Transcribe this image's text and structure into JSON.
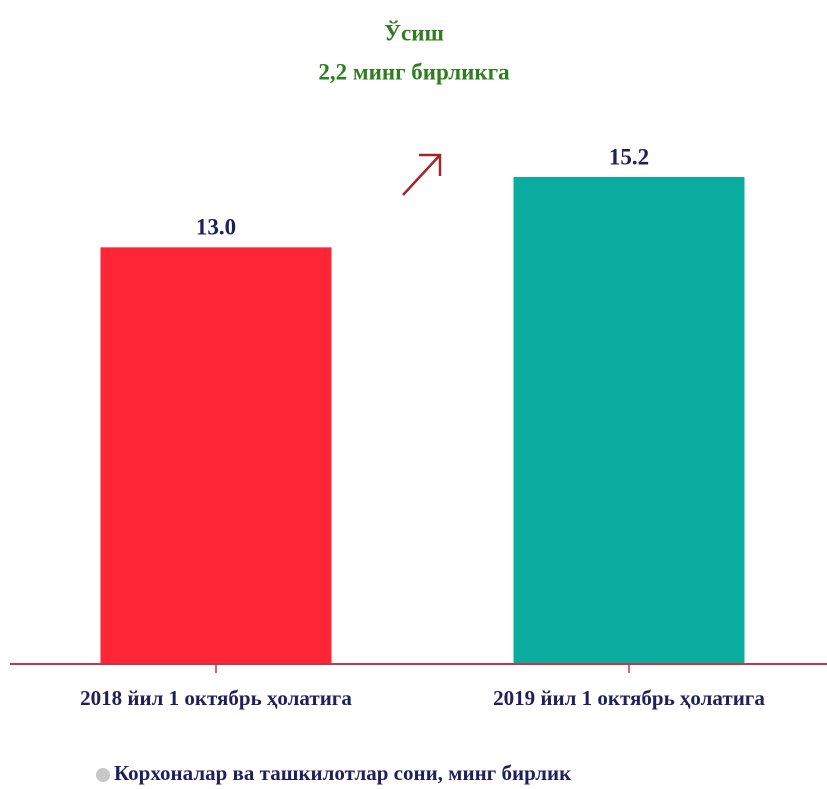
{
  "chart_data": {
    "type": "bar",
    "annotations": [
      "Ўсиш",
      "2,2 минг бирликга"
    ],
    "categories": [
      "2018 йил 1 октябрь ҳолатига",
      "2019 йил 1 октябрь ҳолатига"
    ],
    "series": [
      {
        "name": "Корхоналар ва ташкилотлар сони, минг бирлик",
        "color": "#c8c8c8",
        "bar_colors": [
          "#fe2634",
          "#0aaca0"
        ],
        "values": [
          13.0,
          15.2
        ],
        "value_labels": [
          "13.0",
          "15.2"
        ]
      }
    ],
    "legend": "bottom"
  }
}
